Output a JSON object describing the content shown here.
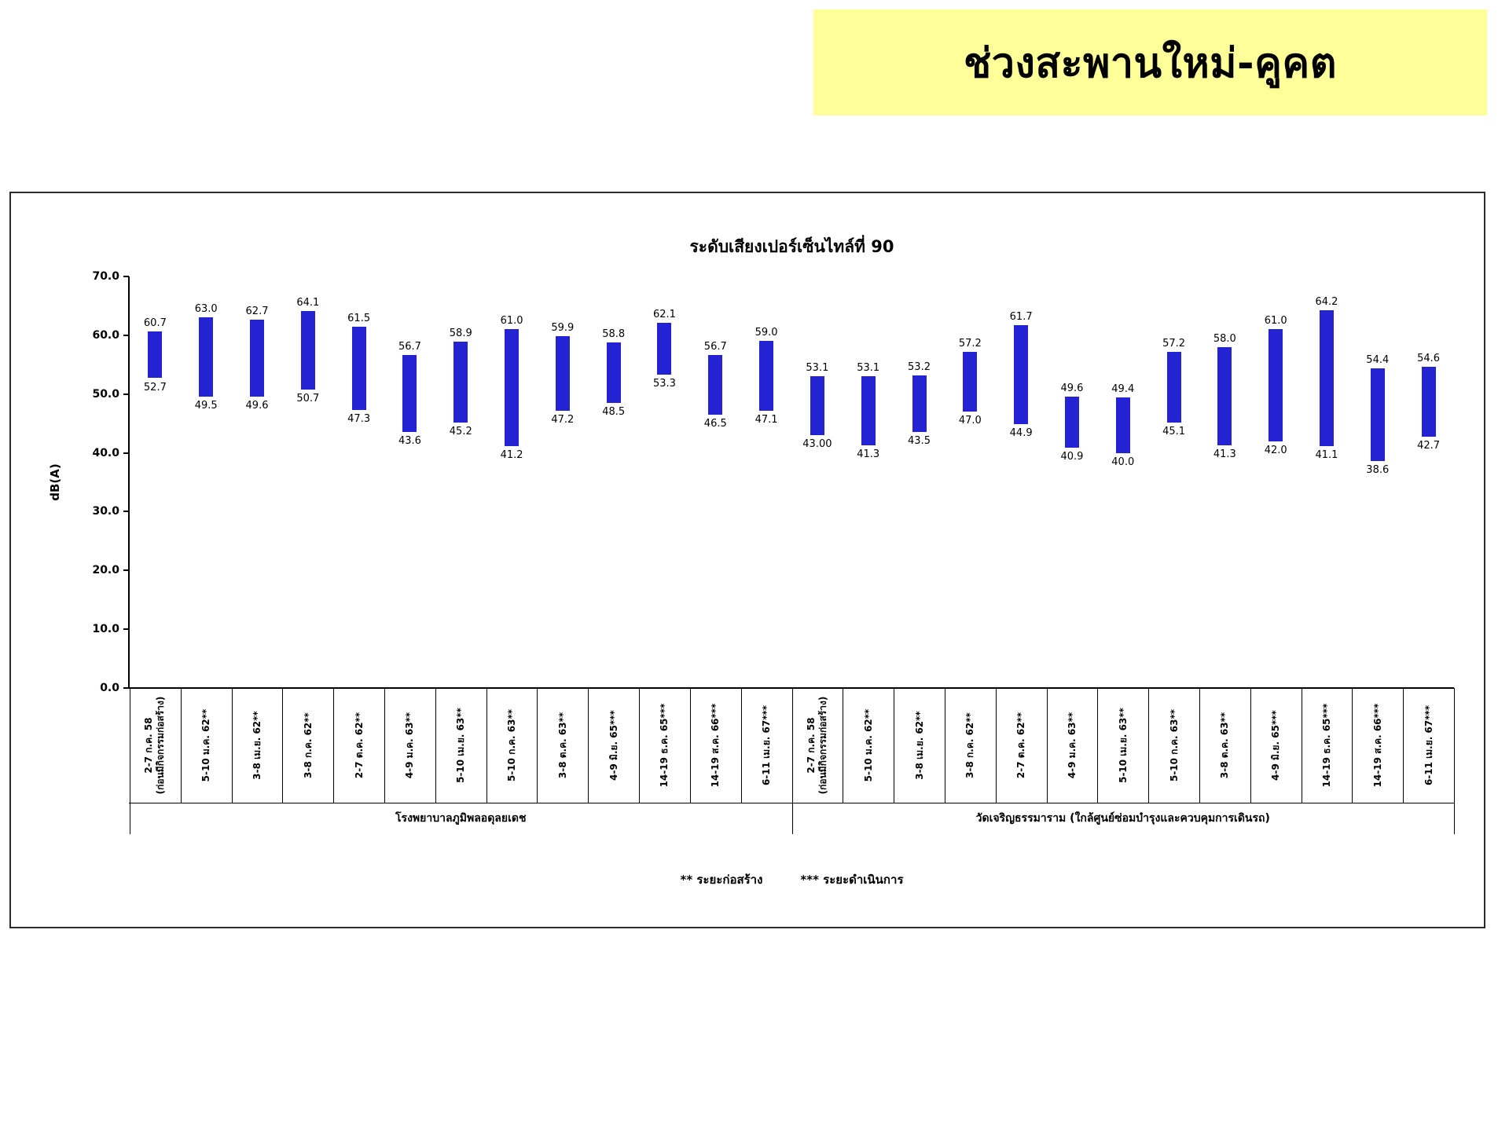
{
  "banner": {
    "title": "ช่วงสะพานใหม่-คูคต",
    "bg_color": "#FFFF99"
  },
  "chart_data": {
    "type": "floating-bar-range",
    "title": "ระดับเสียงเปอร์เซ็นไทล์ที่ 90",
    "ylabel": "dB(A)",
    "ylim": [
      0,
      70
    ],
    "ytick_step": 10,
    "grid": false,
    "legend_position": "none",
    "bar_color": "#2323D3",
    "footnote": {
      "construction": "** ระยะก่อสร้าง",
      "operation": "*** ระยะดำเนินการ"
    },
    "groups": [
      {
        "label": "โรงพยาบาลภูมิพลอดุลยเดช",
        "points": [
          {
            "category": "2-7 ก.ค. 58\n(ก่อนมีกิจกรรมก่อสร้าง)",
            "low": "52.7",
            "high": "60.7"
          },
          {
            "category": "5-10 ม.ค. 62**",
            "low": "49.5",
            "high": "63.0"
          },
          {
            "category": "3-8 เม.ย. 62**",
            "low": "49.6",
            "high": "62.7"
          },
          {
            "category": "3-8 ก.ค. 62**",
            "low": "50.7",
            "high": "64.1"
          },
          {
            "category": "2-7 ต.ค. 62**",
            "low": "47.3",
            "high": "61.5"
          },
          {
            "category": "4-9 ม.ค. 63**",
            "low": "43.6",
            "high": "56.7"
          },
          {
            "category": "5-10 เม.ย. 63**",
            "low": "45.2",
            "high": "58.9"
          },
          {
            "category": "5-10 ก.ค. 63**",
            "low": "41.2",
            "high": "61.0"
          },
          {
            "category": "3-8 ต.ค. 63**",
            "low": "47.2",
            "high": "59.9"
          },
          {
            "category": "4-9 มิ.ย. 65***",
            "low": "48.5",
            "high": "58.8"
          },
          {
            "category": "14-19 ธ.ค. 65***",
            "low": "53.3",
            "high": "62.1"
          },
          {
            "category": "14-19 ส.ค. 66***",
            "low": "46.5",
            "high": "56.7"
          },
          {
            "category": "6-11 เม.ย. 67***",
            "low": "47.1",
            "high": "59.0"
          }
        ]
      },
      {
        "label": "วัดเจริญธรรมาราม (ใกล้ศูนย์ซ่อมบำรุงและควบคุมการเดินรถ)",
        "points": [
          {
            "category": "2-7 ก.ค. 58\n(ก่อนมีกิจกรรมก่อสร้าง)",
            "low": "43.00",
            "high": "53.1"
          },
          {
            "category": "5-10 ม.ค. 62**",
            "low": "41.3",
            "high": "53.1"
          },
          {
            "category": "3-8 เม.ย. 62**",
            "low": "43.5",
            "high": "53.2"
          },
          {
            "category": "3-8 ก.ค. 62**",
            "low": "47.0",
            "high": "57.2"
          },
          {
            "category": "2-7 ต.ค. 62**",
            "low": "44.9",
            "high": "61.7"
          },
          {
            "category": "4-9 ม.ค. 63**",
            "low": "40.9",
            "high": "49.6"
          },
          {
            "category": "5-10 เม.ย. 63**",
            "low": "40.0",
            "high": "49.4"
          },
          {
            "category": "5-10 ก.ค. 63**",
            "low": "45.1",
            "high": "57.2"
          },
          {
            "category": "3-8 ต.ค. 63**",
            "low": "41.3",
            "high": "58.0"
          },
          {
            "category": "4-9 มิ.ย. 65***",
            "low": "42.0",
            "high": "61.0"
          },
          {
            "category": "14-19 ธ.ค. 65***",
            "low": "41.1",
            "high": "64.2"
          },
          {
            "category": "14-19 ส.ค. 66***",
            "low": "38.6",
            "high": "54.4"
          },
          {
            "category": "6-11 เม.ย. 67***",
            "low": "42.7",
            "high": "54.6"
          }
        ]
      }
    ]
  }
}
